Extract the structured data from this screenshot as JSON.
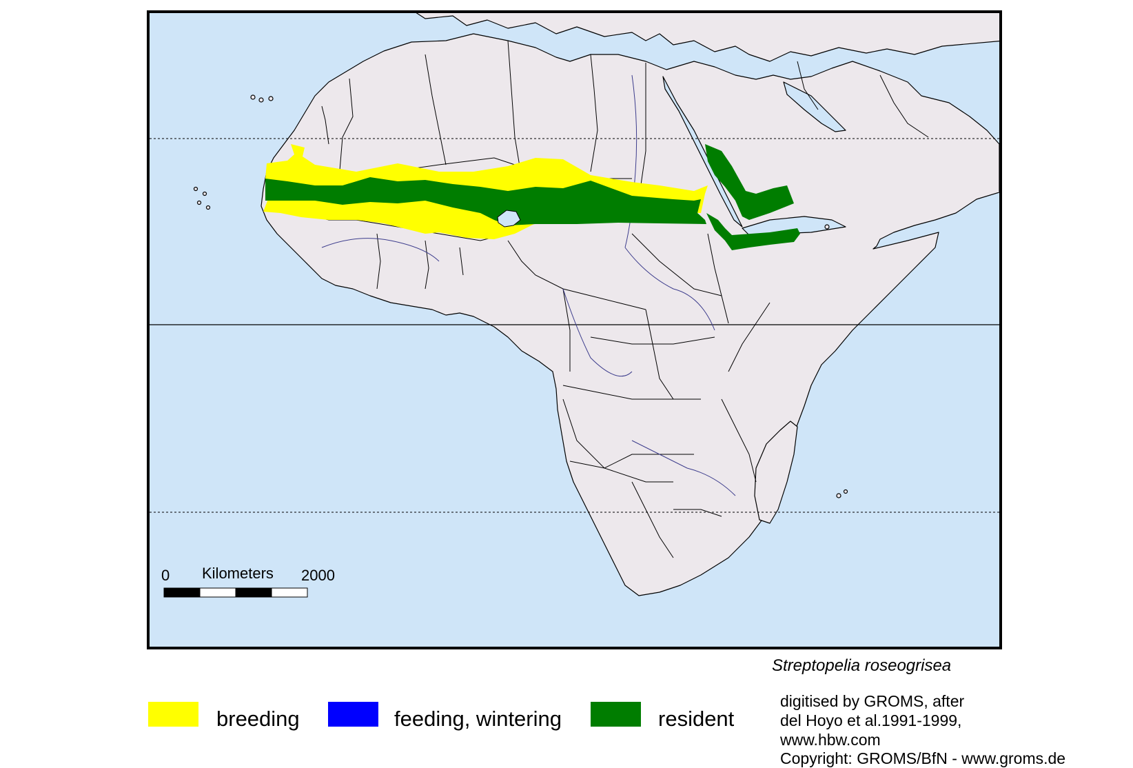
{
  "map": {
    "colors": {
      "ocean": "#cfe5f8",
      "land": "#ede8ec",
      "border": "#000000",
      "rivers": "#3c3c8c",
      "breeding": "#ffff00",
      "feeding": "#0000ff",
      "resident": "#007d00"
    },
    "graticule": [
      "tropic-of-cancer",
      "equator",
      "tropic-of-capricorn"
    ]
  },
  "scalebar": {
    "start_label": "0",
    "unit_label": "Kilometers",
    "end_label": "2000"
  },
  "species_name": "Streptopelia roseogrisea",
  "legend": [
    {
      "label": "breeding",
      "color": "#ffff00"
    },
    {
      "label": "feeding, wintering",
      "color": "#0000ff"
    },
    {
      "label": "resident",
      "color": "#007d00"
    }
  ],
  "credits": [
    "digitised by GROMS, after",
    "del Hoyo et al.1991-1999,",
    "www.hbw.com",
    "Copyright: GROMS/BfN - www.groms.de"
  ]
}
